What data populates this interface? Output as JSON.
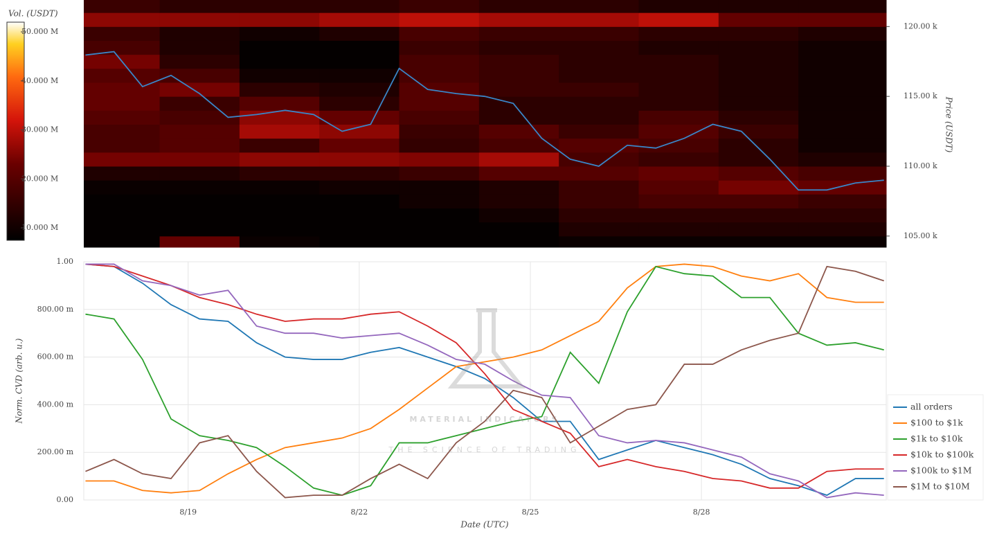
{
  "chart_data": [
    {
      "type": "heatmap",
      "colorbar_title": "Vol. (USDT)",
      "y_label": "Price (USDT)",
      "clim": [
        7460000,
        51980000
      ],
      "cticks": [
        {
          "value": 10000000,
          "label": "10.000 M"
        },
        {
          "value": 20000000,
          "label": "20.000 M"
        },
        {
          "value": 30000000,
          "label": "30.000 M"
        },
        {
          "value": 40000000,
          "label": "40.000 M"
        },
        {
          "value": 50000000,
          "label": "50.000 M"
        }
      ],
      "xlim": [
        17.17,
        31.24
      ],
      "ylim": [
        104200,
        121900
      ],
      "yticks": [
        {
          "value": 105000,
          "label": "105.00 k"
        },
        {
          "value": 110000,
          "label": "110.00 k"
        },
        {
          "value": 115000,
          "label": "115.00 k"
        },
        {
          "value": 120000,
          "label": "120.00 k"
        }
      ],
      "x_edges": [
        17.17,
        18.5,
        19.9,
        21.3,
        22.7,
        24.1,
        25.5,
        26.9,
        28.3,
        29.7,
        31.24
      ],
      "y_edges": [
        104200,
        105000,
        106000,
        107000,
        108000,
        109000,
        110000,
        111000,
        112000,
        113000,
        114000,
        115000,
        116000,
        117000,
        118000,
        119000,
        120000,
        121000,
        121900
      ],
      "z": [
        [
          8000000,
          22000000,
          9000000,
          8000000,
          8000000,
          8000000,
          9000000,
          9000000,
          9000000,
          9000000
        ],
        [
          8000000,
          8000000,
          8000000,
          8000000,
          8000000,
          8000000,
          12000000,
          12000000,
          12000000,
          12000000
        ],
        [
          8000000,
          8000000,
          8000000,
          8000000,
          8000000,
          10000000,
          14000000,
          14000000,
          14000000,
          14000000
        ],
        [
          8000000,
          8000000,
          8000000,
          8000000,
          10000000,
          12000000,
          16000000,
          18000000,
          18000000,
          16000000
        ],
        [
          9000000,
          9000000,
          9000000,
          10000000,
          10000000,
          12000000,
          16000000,
          20000000,
          24000000,
          22000000
        ],
        [
          12000000,
          12000000,
          14000000,
          14000000,
          16000000,
          20000000,
          20000000,
          22000000,
          20000000,
          18000000
        ],
        [
          24000000,
          24000000,
          26000000,
          26000000,
          25000000,
          28000000,
          18000000,
          16000000,
          14000000,
          12000000
        ],
        [
          18000000,
          20000000,
          16000000,
          22000000,
          15000000,
          18000000,
          20000000,
          18000000,
          14000000,
          10000000
        ],
        [
          18000000,
          20000000,
          28000000,
          26000000,
          16000000,
          20000000,
          16000000,
          20000000,
          16000000,
          10000000
        ],
        [
          20000000,
          18000000,
          26000000,
          22000000,
          18000000,
          14000000,
          14000000,
          18000000,
          14000000,
          10000000
        ],
        [
          22000000,
          16000000,
          20000000,
          14000000,
          20000000,
          14000000,
          14000000,
          14000000,
          12000000,
          10000000
        ],
        [
          22000000,
          24000000,
          14000000,
          12000000,
          20000000,
          16000000,
          16000000,
          14000000,
          12000000,
          10000000
        ],
        [
          20000000,
          18000000,
          10000000,
          10000000,
          18000000,
          16000000,
          14000000,
          14000000,
          12000000,
          10000000
        ],
        [
          24000000,
          14000000,
          8000000,
          8000000,
          18000000,
          16000000,
          14000000,
          14000000,
          12000000,
          10000000
        ],
        [
          18000000,
          12000000,
          8000000,
          8000000,
          16000000,
          14000000,
          14000000,
          12000000,
          12000000,
          10000000
        ],
        [
          16000000,
          12000000,
          10000000,
          12000000,
          18000000,
          16000000,
          16000000,
          14000000,
          14000000,
          12000000
        ],
        [
          26000000,
          26000000,
          26000000,
          28000000,
          30000000,
          28000000,
          28000000,
          30000000,
          22000000,
          22000000
        ],
        [
          16000000,
          14000000,
          14000000,
          14000000,
          16000000,
          14000000,
          14000000,
          12000000,
          12000000,
          12000000
        ]
      ],
      "line": {
        "color": "#3a86c8",
        "x": [
          17.2,
          17.7,
          18.2,
          18.7,
          19.2,
          19.7,
          20.2,
          20.7,
          21.2,
          21.7,
          22.2,
          22.7,
          23.2,
          23.7,
          24.2,
          24.7,
          25.2,
          25.7,
          26.2,
          26.7,
          27.2,
          27.7,
          28.2,
          28.7,
          29.2,
          29.7,
          30.2,
          30.7,
          31.2
        ],
        "values": [
          117960,
          118200,
          115700,
          116500,
          115200,
          113500,
          113700,
          114000,
          113700,
          112500,
          113000,
          117000,
          115500,
          115200,
          115000,
          114500,
          112000,
          110500,
          110000,
          111500,
          111300,
          112000,
          113000,
          112500,
          110500,
          108300,
          108300,
          108800,
          109000
        ]
      }
    },
    {
      "type": "line",
      "x_label": "Date (UTC)",
      "y_label": "Norm. CVD (arb. u.)",
      "xlim": [
        17.17,
        31.24
      ],
      "xticks": [
        {
          "value": 19,
          "label": "8/19"
        },
        {
          "value": 22,
          "label": "8/22"
        },
        {
          "value": 25,
          "label": "8/25"
        },
        {
          "value": 28,
          "label": "8/28"
        }
      ],
      "ylim": [
        0,
        1
      ],
      "yticks": [
        {
          "value": 0,
          "label": "0.00"
        },
        {
          "value": 0.2,
          "label": "200.00 m"
        },
        {
          "value": 0.4,
          "label": "400.00 m"
        },
        {
          "value": 0.6,
          "label": "600.00 m"
        },
        {
          "value": 0.8,
          "label": "800.00 m"
        },
        {
          "value": 1,
          "label": "1.00"
        }
      ],
      "grid": true,
      "legend": "lower right outside",
      "x": [
        17.2,
        17.7,
        18.2,
        18.7,
        19.2,
        19.7,
        20.2,
        20.7,
        21.2,
        21.7,
        22.2,
        22.7,
        23.2,
        23.7,
        24.2,
        24.7,
        25.2,
        25.7,
        26.2,
        26.7,
        27.2,
        27.7,
        28.2,
        28.7,
        29.2,
        29.7,
        30.2,
        30.7,
        31.2
      ],
      "series": [
        {
          "name": "all orders",
          "color": "#1f77b4",
          "values": [
            0.99,
            0.98,
            0.91,
            0.82,
            0.76,
            0.75,
            0.66,
            0.6,
            0.59,
            0.59,
            0.62,
            0.64,
            0.6,
            0.56,
            0.51,
            0.43,
            0.33,
            0.33,
            0.17,
            0.21,
            0.25,
            0.22,
            0.19,
            0.15,
            0.09,
            0.06,
            0.02,
            0.09,
            0.09
          ]
        },
        {
          "name": "$100 to $1k",
          "color": "#ff7f0e",
          "values": [
            0.08,
            0.08,
            0.04,
            0.03,
            0.04,
            0.11,
            0.17,
            0.22,
            0.24,
            0.26,
            0.3,
            0.38,
            0.47,
            0.56,
            0.58,
            0.6,
            0.63,
            0.69,
            0.75,
            0.89,
            0.98,
            0.99,
            0.98,
            0.94,
            0.92,
            0.95,
            0.85,
            0.83,
            0.83
          ]
        },
        {
          "name": "$1k to $10k",
          "color": "#2ca02c",
          "values": [
            0.78,
            0.76,
            0.59,
            0.34,
            0.27,
            0.25,
            0.22,
            0.14,
            0.05,
            0.02,
            0.06,
            0.24,
            0.24,
            0.27,
            0.3,
            0.33,
            0.35,
            0.62,
            0.49,
            0.79,
            0.98,
            0.95,
            0.94,
            0.85,
            0.85,
            0.7,
            0.65,
            0.66,
            0.63
          ]
        },
        {
          "name": "$10k to $100k",
          "color": "#d62728",
          "values": [
            0.99,
            0.98,
            0.94,
            0.9,
            0.85,
            0.82,
            0.78,
            0.75,
            0.76,
            0.76,
            0.78,
            0.79,
            0.73,
            0.66,
            0.53,
            0.38,
            0.33,
            0.28,
            0.14,
            0.17,
            0.14,
            0.12,
            0.09,
            0.08,
            0.05,
            0.05,
            0.12,
            0.13,
            0.13
          ]
        },
        {
          "name": "$100k to $1M",
          "color": "#9467bd",
          "values": [
            0.99,
            0.99,
            0.92,
            0.9,
            0.86,
            0.88,
            0.73,
            0.7,
            0.7,
            0.68,
            0.69,
            0.7,
            0.65,
            0.59,
            0.57,
            0.5,
            0.44,
            0.43,
            0.27,
            0.24,
            0.25,
            0.24,
            0.21,
            0.18,
            0.11,
            0.08,
            0.01,
            0.03,
            0.02
          ]
        },
        {
          "name": "$1M to $10M",
          "color": "#8c564b",
          "values": [
            0.12,
            0.17,
            0.11,
            0.09,
            0.24,
            0.27,
            0.12,
            0.01,
            0.02,
            0.02,
            0.09,
            0.15,
            0.09,
            0.24,
            0.33,
            0.46,
            0.43,
            0.24,
            0.31,
            0.38,
            0.4,
            0.57,
            0.57,
            0.63,
            0.67,
            0.7,
            0.98,
            0.96,
            0.92
          ]
        }
      ]
    }
  ],
  "watermark": {
    "title": "MATERIAL INDICATORS",
    "subtitle": "THE SCIENCE OF TRADING"
  }
}
